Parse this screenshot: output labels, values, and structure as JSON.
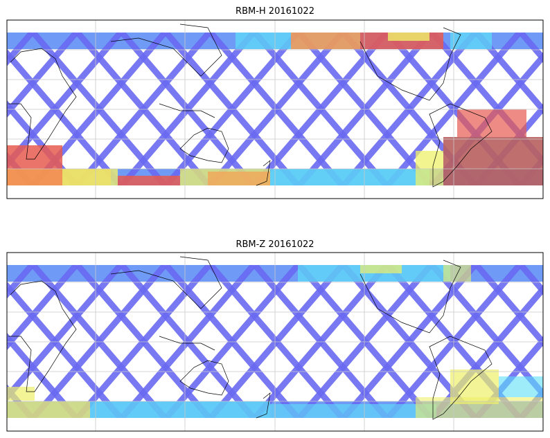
{
  "panels": [
    {
      "title": "RBM-H 20161022"
    },
    {
      "title": "RBM-Z 20161022"
    }
  ],
  "colors": {
    "track_low": "#6a6af2",
    "band_low": "#5f90f6",
    "cyan": "#5ee0f6",
    "yellow": "#eef06a",
    "orange": "#f8a050",
    "red": "#e65a50",
    "dark_red": "#b8605e",
    "grid": "#c8c8c8",
    "coast": "#000000"
  }
}
